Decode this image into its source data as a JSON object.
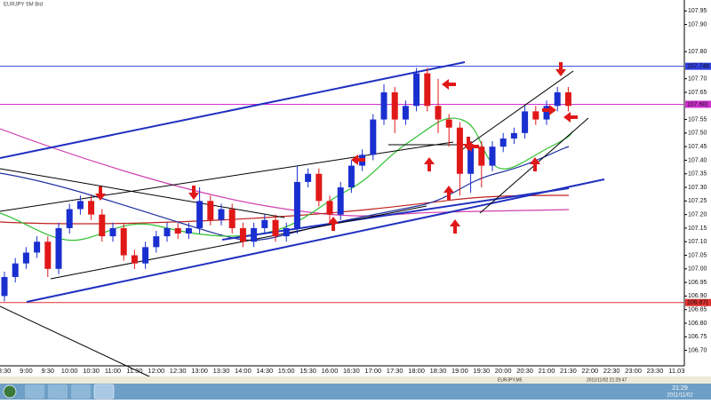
{
  "window": {
    "title": "EURJPY 5M Bid"
  },
  "chart": {
    "ylim": [
      106.643,
      107.99
    ],
    "yticks": [
      {
        "value": 106.7,
        "label": "106.70"
      },
      {
        "value": 106.75,
        "label": "106.75"
      },
      {
        "value": 106.8,
        "label": "106.80"
      },
      {
        "value": 106.85,
        "label": "106.85"
      },
      {
        "value": 106.9,
        "label": "106.90"
      },
      {
        "value": 106.95,
        "label": "106.95"
      },
      {
        "value": 107.0,
        "label": "107.00"
      },
      {
        "value": 107.05,
        "label": "107.05"
      },
      {
        "value": 107.1,
        "label": "107.10"
      },
      {
        "value": 107.15,
        "label": "107.15"
      },
      {
        "value": 107.2,
        "label": "107.20"
      },
      {
        "value": 107.25,
        "label": "107.25"
      },
      {
        "value": 107.3,
        "label": "107.30"
      },
      {
        "value": 107.35,
        "label": "107.35"
      },
      {
        "value": 107.4,
        "label": "107.40"
      },
      {
        "value": 107.45,
        "label": "107.45"
      },
      {
        "value": 107.5,
        "label": "107.50"
      },
      {
        "value": 107.55,
        "label": "107.55"
      },
      {
        "value": 107.65,
        "label": "107.65"
      },
      {
        "value": 107.7,
        "label": "107.70"
      },
      {
        "value": 107.8,
        "label": "107.80"
      },
      {
        "value": 107.9,
        "label": "107.90"
      },
      {
        "value": 107.95,
        "label": "107.95"
      }
    ],
    "time_labels": [
      "8:30",
      "9:00",
      "9:30",
      "10:00",
      "10:30",
      "11:00",
      "11:30",
      "12:00",
      "12:30",
      "13:00",
      "13:30",
      "14:00",
      "14:30",
      "15:00",
      "15:30",
      "16:00",
      "16:30",
      "17:00",
      "17:30",
      "18:00",
      "18:30",
      "19:00",
      "19:30",
      "20:00",
      "20:30",
      "21:00",
      "21:30",
      "22:00",
      "22:30",
      "23:00",
      "23:30",
      "11.03"
    ],
    "up_color": "#1a2fd0",
    "down_color": "#e01818",
    "candles": [
      [
        106.9,
        106.99,
        106.88,
        106.97
      ],
      [
        106.97,
        107.04,
        106.95,
        107.02
      ],
      [
        107.02,
        107.08,
        107.0,
        107.06
      ],
      [
        107.06,
        107.12,
        107.04,
        107.1
      ],
      [
        107.1,
        107.12,
        106.97,
        107.0
      ],
      [
        107.0,
        107.17,
        106.98,
        107.15
      ],
      [
        107.15,
        107.24,
        107.13,
        107.22
      ],
      [
        107.22,
        107.27,
        107.2,
        107.25
      ],
      [
        107.25,
        107.27,
        107.18,
        107.2
      ],
      [
        107.2,
        107.22,
        107.1,
        107.12
      ],
      [
        107.12,
        107.17,
        107.1,
        107.15
      ],
      [
        107.15,
        107.17,
        107.03,
        107.05
      ],
      [
        107.05,
        107.07,
        107.0,
        107.02
      ],
      [
        107.02,
        107.1,
        107.0,
        107.08
      ],
      [
        107.08,
        107.14,
        107.06,
        107.12
      ],
      [
        107.12,
        107.17,
        107.1,
        107.15
      ],
      [
        107.15,
        107.17,
        107.11,
        107.13
      ],
      [
        107.13,
        107.17,
        107.11,
        107.15
      ],
      [
        107.15,
        107.3,
        107.13,
        107.25
      ],
      [
        107.25,
        107.27,
        107.16,
        107.18
      ],
      [
        107.18,
        107.24,
        107.16,
        107.22
      ],
      [
        107.22,
        107.24,
        107.13,
        107.15
      ],
      [
        107.15,
        107.17,
        107.08,
        107.1
      ],
      [
        107.1,
        107.17,
        107.08,
        107.15
      ],
      [
        107.15,
        107.2,
        107.13,
        107.18
      ],
      [
        107.18,
        107.2,
        107.1,
        107.12
      ],
      [
        107.12,
        107.17,
        107.1,
        107.15
      ],
      [
        107.15,
        107.38,
        107.13,
        107.32
      ],
      [
        107.32,
        107.37,
        107.3,
        107.35
      ],
      [
        107.35,
        107.37,
        107.23,
        107.25
      ],
      [
        107.25,
        107.27,
        107.17,
        107.2
      ],
      [
        107.2,
        107.32,
        107.18,
        107.3
      ],
      [
        107.3,
        107.4,
        107.28,
        107.38
      ],
      [
        107.38,
        107.44,
        107.36,
        107.42
      ],
      [
        107.42,
        107.57,
        107.4,
        107.55
      ],
      [
        107.55,
        107.68,
        107.53,
        107.65
      ],
      [
        107.65,
        107.67,
        107.5,
        107.55
      ],
      [
        107.55,
        107.62,
        107.53,
        107.6
      ],
      [
        107.6,
        107.74,
        107.58,
        107.72
      ],
      [
        107.72,
        107.74,
        107.58,
        107.6
      ],
      [
        107.6,
        107.7,
        107.5,
        107.55
      ],
      [
        107.55,
        107.57,
        107.45,
        107.52
      ],
      [
        107.52,
        107.54,
        107.27,
        107.35
      ],
      [
        107.35,
        107.47,
        107.28,
        107.45
      ],
      [
        107.45,
        107.47,
        107.3,
        107.38
      ],
      [
        107.38,
        107.47,
        107.36,
        107.45
      ],
      [
        107.45,
        107.5,
        107.43,
        107.48
      ],
      [
        107.48,
        107.52,
        107.46,
        107.5
      ],
      [
        107.5,
        107.6,
        107.48,
        107.58
      ],
      [
        107.58,
        107.6,
        107.53,
        107.55
      ],
      [
        107.55,
        107.62,
        107.53,
        107.6
      ],
      [
        107.6,
        107.67,
        107.58,
        107.65
      ],
      [
        107.65,
        107.67,
        107.58,
        107.6
      ]
    ],
    "levels": [
      {
        "value": 107.746,
        "label": "107.746",
        "color": "#3040e0"
      },
      {
        "value": 107.606,
        "label": "107.60(",
        "color": "#d030d0"
      },
      {
        "value": 106.876,
        "label": "106.87(",
        "color": "#e03030"
      }
    ],
    "status": [
      "EURJPY,M5",
      "2011/11/02 21:29:47"
    ]
  },
  "taskbar": {
    "clock": "21:29",
    "date": "2011/11/02"
  }
}
